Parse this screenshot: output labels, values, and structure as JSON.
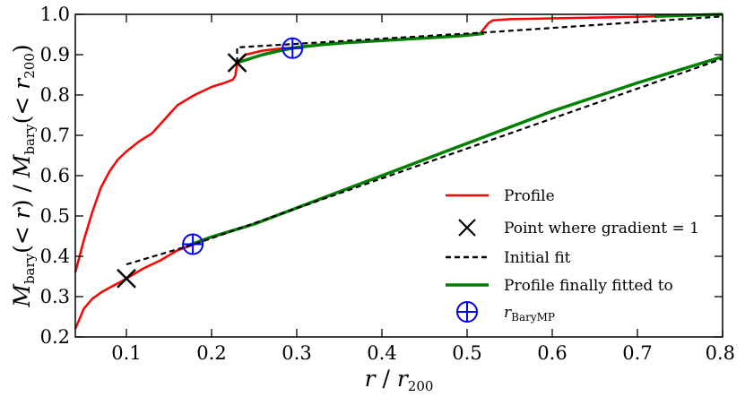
{
  "chart_data": {
    "type": "line",
    "xlabel_parts": [
      "r",
      " / ",
      "r",
      "200"
    ],
    "ylabel_parts": [
      "M",
      "bary",
      "(< ",
      "r",
      ") / ",
      "M",
      "bary",
      "(< ",
      "r",
      "200",
      ")"
    ],
    "xlim": [
      0.04,
      0.8
    ],
    "ylim": [
      0.2,
      1.0
    ],
    "x_ticks": [
      0.1,
      0.2,
      0.3,
      0.4,
      0.5,
      0.6,
      0.7,
      0.8
    ],
    "x_tick_labels": [
      "0.1",
      "0.2",
      "0.3",
      "0.4",
      "0.5",
      "0.6",
      "0.7",
      "0.8"
    ],
    "y_ticks": [
      0.2,
      0.3,
      0.4,
      0.5,
      0.6,
      0.7,
      0.8,
      0.9,
      1.0
    ],
    "y_tick_labels": [
      "0.2",
      "0.3",
      "0.4",
      "0.5",
      "0.6",
      "0.7",
      "0.8",
      "0.9",
      "1.0"
    ],
    "colors": {
      "profile": "#ff0000",
      "point": "#000000",
      "fit": "#000000",
      "final": "#008000",
      "marker": "#0000ff"
    },
    "legend": {
      "position": "lower-right",
      "entries": [
        {
          "key": "profile",
          "label": "Profile"
        },
        {
          "key": "point",
          "label": "Point where gradient = 1"
        },
        {
          "key": "fit",
          "label": "Initial fit"
        },
        {
          "key": "final",
          "label": "Profile finally fitted to"
        },
        {
          "key": "marker",
          "label_main": "r",
          "label_sub": "BaryMP"
        }
      ]
    },
    "series": [
      {
        "name": "Profile (upper)",
        "style": "profile",
        "x": [
          0.04,
          0.05,
          0.06,
          0.07,
          0.08,
          0.09,
          0.1,
          0.115,
          0.13,
          0.145,
          0.16,
          0.18,
          0.2,
          0.215,
          0.225,
          0.228,
          0.23,
          0.24,
          0.26,
          0.28,
          0.3,
          0.33,
          0.36,
          0.4,
          0.44,
          0.48,
          0.5,
          0.515,
          0.52,
          0.525,
          0.53,
          0.55,
          0.6,
          0.65,
          0.7,
          0.75,
          0.8
        ],
        "y": [
          0.36,
          0.44,
          0.51,
          0.57,
          0.61,
          0.64,
          0.66,
          0.685,
          0.705,
          0.74,
          0.775,
          0.8,
          0.82,
          0.83,
          0.838,
          0.848,
          0.88,
          0.9,
          0.91,
          0.915,
          0.918,
          0.925,
          0.93,
          0.935,
          0.94,
          0.945,
          0.948,
          0.952,
          0.965,
          0.978,
          0.985,
          0.988,
          0.99,
          0.992,
          0.994,
          0.997,
          1.0
        ]
      },
      {
        "name": "Final fit (upper)",
        "style": "final",
        "x": [
          0.23,
          0.26,
          0.28,
          0.3,
          0.33,
          0.36,
          0.4,
          0.44,
          0.48,
          0.5,
          0.52
        ],
        "y": [
          0.88,
          0.9,
          0.91,
          0.918,
          0.925,
          0.93,
          0.935,
          0.94,
          0.945,
          0.948,
          0.953
        ]
      },
      {
        "name": "Final fit (upper, outer)",
        "style": "final",
        "x": [
          0.72,
          0.75,
          0.8
        ],
        "y": [
          0.995,
          0.997,
          1.0
        ]
      },
      {
        "name": "Initial fit (upper)",
        "style": "fit",
        "x": [
          0.23,
          0.23,
          0.52,
          0.8
        ],
        "y": [
          0.88,
          0.918,
          0.955,
          0.995
        ]
      },
      {
        "name": "Profile (lower)",
        "style": "profile",
        "x": [
          0.04,
          0.05,
          0.06,
          0.07,
          0.08,
          0.09,
          0.1,
          0.12,
          0.14,
          0.16,
          0.18,
          0.2,
          0.25,
          0.3,
          0.4,
          0.5,
          0.6,
          0.7,
          0.8
        ],
        "y": [
          0.22,
          0.27,
          0.295,
          0.31,
          0.322,
          0.333,
          0.345,
          0.37,
          0.39,
          0.415,
          0.43,
          0.448,
          0.48,
          0.52,
          0.6,
          0.68,
          0.76,
          0.83,
          0.895
        ]
      },
      {
        "name": "Final fit (lower)",
        "style": "final",
        "x": [
          0.17,
          0.2,
          0.25,
          0.3,
          0.4,
          0.5,
          0.6,
          0.7,
          0.8
        ],
        "y": [
          0.425,
          0.448,
          0.48,
          0.52,
          0.6,
          0.68,
          0.76,
          0.83,
          0.895
        ]
      },
      {
        "name": "Initial fit (lower)",
        "style": "fit",
        "x": [
          0.1,
          0.18,
          0.8
        ],
        "y": [
          0.38,
          0.43,
          0.89
        ]
      }
    ],
    "points": [
      {
        "name": "gradient-point-upper",
        "style": "point",
        "x": 0.23,
        "y": 0.88
      },
      {
        "name": "gradient-point-lower",
        "style": "point",
        "x": 0.1,
        "y": 0.345
      },
      {
        "name": "r-barymp-upper",
        "style": "marker",
        "x": 0.295,
        "y": 0.916
      },
      {
        "name": "r-barymp-lower",
        "style": "marker",
        "x": 0.178,
        "y": 0.43
      }
    ]
  }
}
